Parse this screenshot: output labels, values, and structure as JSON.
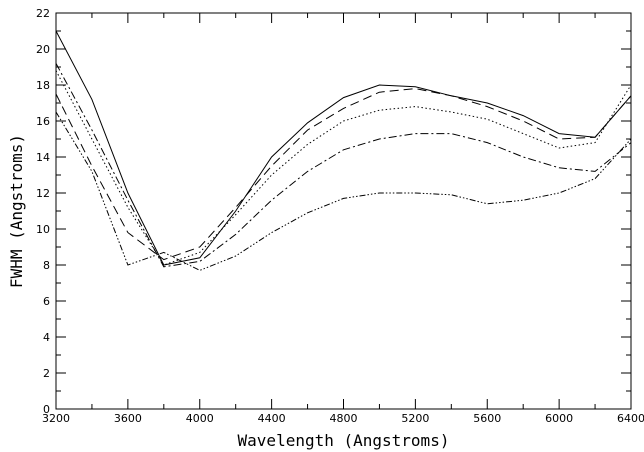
{
  "chart_data": {
    "type": "line",
    "xlabel": "Wavelength (Angstroms)",
    "ylabel": "FWHM (Angstroms)",
    "xlim": [
      3200,
      6400
    ],
    "ylim": [
      0,
      22
    ],
    "x_ticks": [
      3200,
      3600,
      4000,
      4400,
      4800,
      5200,
      5600,
      6000,
      6400
    ],
    "x_tick_labels": [
      "3200",
      "3600",
      "4000",
      "4400",
      "4800",
      "5200",
      "5600",
      "6000",
      "6400"
    ],
    "x_minor_step": 200,
    "y_ticks": [
      0,
      2,
      4,
      6,
      8,
      10,
      12,
      14,
      16,
      18,
      20,
      22
    ],
    "y_tick_labels": [
      "0",
      "2",
      "4",
      "6",
      "8",
      "10",
      "12",
      "14",
      "16",
      "18",
      "20",
      "22"
    ],
    "y_minor_step": 1,
    "grid": false,
    "x": [
      3200,
      3400,
      3600,
      3800,
      4000,
      4200,
      4400,
      4600,
      4800,
      5000,
      5200,
      5400,
      5600,
      5800,
      6000,
      6200,
      6400
    ],
    "series": [
      {
        "values": [
          21.0,
          17.2,
          12.0,
          8.0,
          8.4,
          11.0,
          14.0,
          15.9,
          17.3,
          18.0,
          17.9,
          17.4,
          17.0,
          16.3,
          15.3,
          15.1,
          17.4
        ],
        "dash": ""
      },
      {
        "values": [
          17.5,
          13.5,
          9.8,
          8.3,
          9.0,
          11.2,
          13.5,
          15.5,
          16.7,
          17.6,
          17.8,
          17.4,
          16.8,
          16.0,
          15.0,
          15.1,
          17.4
        ],
        "dash": "9,5"
      },
      {
        "values": [
          18.8,
          15.0,
          11.2,
          8.0,
          8.7,
          10.8,
          13.0,
          14.7,
          16.0,
          16.6,
          16.8,
          16.5,
          16.1,
          15.3,
          14.5,
          14.8,
          18.0
        ],
        "dash": "1.5,2.5"
      },
      {
        "values": [
          19.2,
          15.5,
          11.6,
          7.9,
          8.2,
          9.7,
          11.6,
          13.2,
          14.4,
          15.0,
          15.3,
          15.3,
          14.8,
          14.0,
          13.4,
          13.2,
          14.8
        ],
        "dash": "8,3,2,3"
      },
      {
        "values": [
          16.5,
          13.2,
          8.0,
          8.7,
          7.7,
          8.5,
          9.8,
          10.9,
          11.7,
          12.0,
          12.0,
          11.9,
          11.4,
          11.6,
          12.0,
          12.8,
          15.0
        ],
        "dash": "6,2,1.5,2,1.5,2,1.5,2"
      }
    ]
  }
}
